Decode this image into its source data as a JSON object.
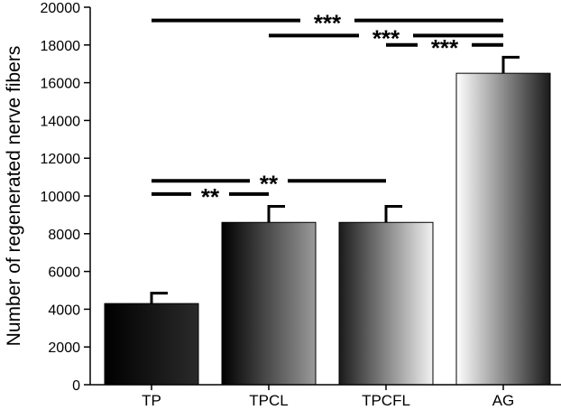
{
  "chart_data": {
    "type": "bar",
    "title": "",
    "xlabel": "",
    "ylabel": "Number of regenerated nerve fibers",
    "ylim": [
      0,
      20000
    ],
    "yticks": [
      0,
      2000,
      4000,
      6000,
      8000,
      10000,
      12000,
      14000,
      16000,
      18000,
      20000
    ],
    "categories": [
      "TP",
      "TPCL",
      "TPCFL",
      "AG"
    ],
    "values": [
      4300,
      8600,
      8600,
      16500
    ],
    "errors": [
      550,
      850,
      850,
      850
    ],
    "grid": false,
    "significance": [
      {
        "from": 0,
        "to": 3,
        "label": "***",
        "y": 19300
      },
      {
        "from": 1,
        "to": 3,
        "label": "***",
        "y": 18500
      },
      {
        "from": 2,
        "to": 3,
        "label": "***",
        "y": 18000
      },
      {
        "from": 0,
        "to": 2,
        "label": "**",
        "y": 10800
      },
      {
        "from": 0,
        "to": 1,
        "label": "**",
        "y": 10100
      }
    ]
  }
}
